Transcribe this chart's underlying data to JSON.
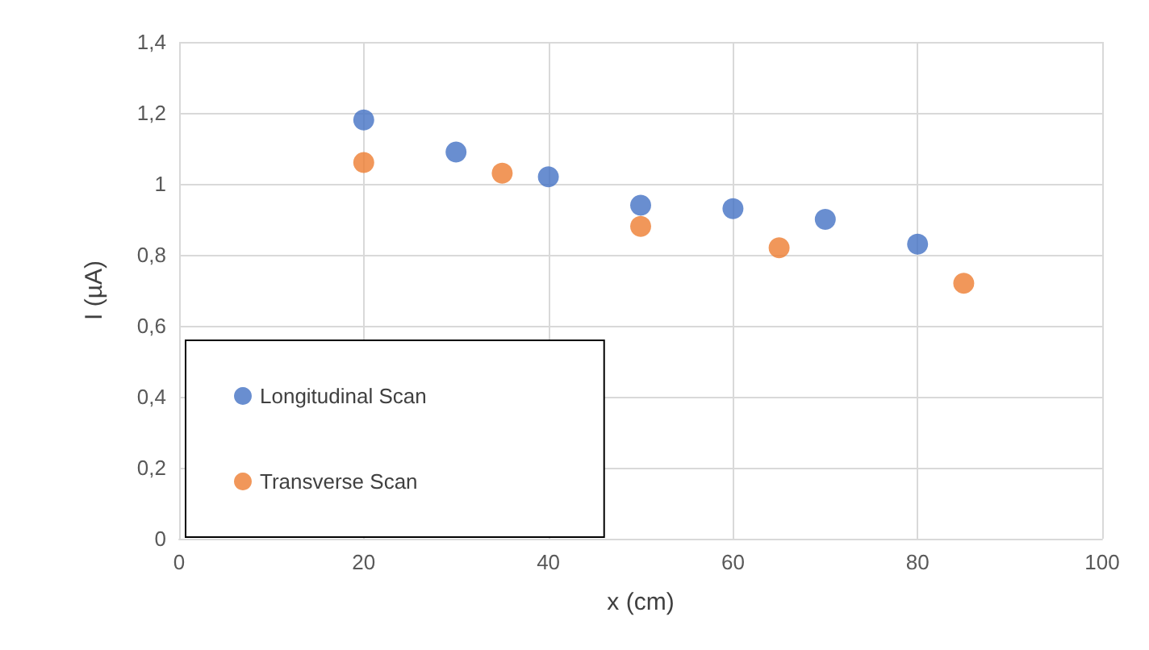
{
  "chart_data": {
    "type": "scatter",
    "xlabel": "x (cm)",
    "ylabel": "I (µA)",
    "xlim": [
      0,
      100
    ],
    "xticks": [
      0,
      20,
      40,
      60,
      80,
      100
    ],
    "ylim": [
      0,
      1.4
    ],
    "yticks": [
      0,
      {
        "value": 0.2,
        "label": "0,2"
      },
      {
        "value": 0.4,
        "label": "0,4"
      },
      {
        "value": 0.6,
        "label": "0,6"
      },
      {
        "value": 0.8,
        "label": "0,8"
      },
      1,
      {
        "value": 1.2,
        "label": "1,2"
      },
      {
        "value": 1.4,
        "label": "1,4"
      }
    ],
    "grid": true,
    "legend": "bottom left",
    "marker": "circle",
    "series": [
      {
        "name": "Longitudinal Scan",
        "color": "#4472c4",
        "x": [
          20,
          30,
          40,
          50,
          60,
          70,
          80
        ],
        "values": [
          1.18,
          1.09,
          1.02,
          0.94,
          0.93,
          0.9,
          0.83
        ]
      },
      {
        "name": "Transverse Scan",
        "color": "#ed7d31",
        "x": [
          20,
          35,
          50,
          65,
          85
        ],
        "values": [
          1.06,
          1.03,
          0.88,
          0.82,
          0.72
        ]
      }
    ]
  }
}
